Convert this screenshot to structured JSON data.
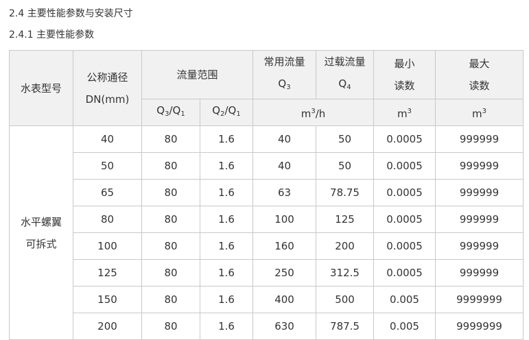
{
  "headings": {
    "section": "2.4 主要性能参数与安装尺寸",
    "subsection": "2.4.1 主要性能参数"
  },
  "table": {
    "headers": {
      "model": "水表型号",
      "dn_1": "公称通径",
      "dn_2": "DN(mm)",
      "flow_range": "流量范围",
      "q3q1": "Q",
      "q3q1_a": "3",
      "q3q1_b": "/Q",
      "q3q1_c": "1",
      "q2q1": "Q",
      "q2q1_a": "2",
      "q2q1_b": "/Q",
      "q2q1_c": "1",
      "q3_1": "常用流量",
      "q3_2": "Q",
      "q3_sub": "3",
      "q4_1": "过载流量",
      "q4_2": "Q",
      "q4_sub": "4",
      "min_1": "最小",
      "min_2": "读数",
      "max_1": "最大",
      "max_2": "读数",
      "unit_flow_m": "m",
      "unit_flow_exp": "3",
      "unit_flow_h": "/h",
      "unit_min_m": "m",
      "unit_min_exp": "3",
      "unit_max_m": "m",
      "unit_max_exp": "3"
    },
    "model_1": "水平螺翼",
    "model_2": "可拆式",
    "rows": [
      [
        "40",
        "80",
        "1.6",
        "40",
        "50",
        "0.0005",
        "999999"
      ],
      [
        "50",
        "80",
        "1.6",
        "40",
        "50",
        "0.0005",
        "999999"
      ],
      [
        "65",
        "80",
        "1.6",
        "63",
        "78.75",
        "0.0005",
        "999999"
      ],
      [
        "80",
        "80",
        "1.6",
        "100",
        "125",
        "0.0005",
        "999999"
      ],
      [
        "100",
        "80",
        "1.6",
        "160",
        "200",
        "0.0005",
        "999999"
      ],
      [
        "125",
        "80",
        "1.6",
        "250",
        "312.5",
        "0.0005",
        "999999"
      ],
      [
        "150",
        "80",
        "1.6",
        "400",
        "500",
        "0.005",
        "9999999"
      ],
      [
        "200",
        "80",
        "1.6",
        "630",
        "787.5",
        "0.005",
        "9999999"
      ]
    ]
  }
}
